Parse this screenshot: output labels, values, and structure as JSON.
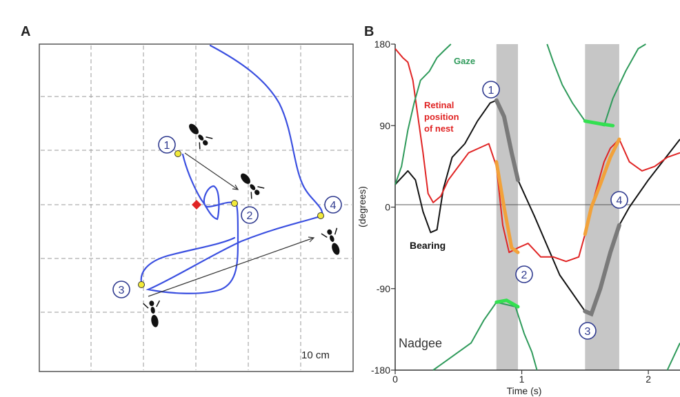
{
  "panel_a": {
    "label": "A",
    "scale_text": "10 cm",
    "markers": [
      "1",
      "2",
      "3",
      "4"
    ]
  },
  "panel_b": {
    "label": "B",
    "y_axis_label": "(degrees)",
    "x_axis_label": "Time (s)",
    "y_ticks": [
      "180",
      "90",
      "0",
      "-90",
      "-180"
    ],
    "x_ticks": [
      "0",
      "1",
      "2"
    ],
    "labels": {
      "gaze": "Gaze",
      "retinal_1": "Retinal",
      "retinal_2": "position",
      "retinal_3": "of nest",
      "bearing": "Bearing",
      "nadgee": "Nadgee"
    },
    "markers": [
      "1",
      "2",
      "3",
      "4"
    ]
  },
  "colors": {
    "gaze": "#2e9a5a",
    "retinal": "#e02424",
    "bearing": "#111111",
    "path": "#3a4fe0",
    "highlight_orange": "#f2a23a",
    "highlight_green": "#33e050",
    "marker": "#2f3a8f",
    "shade": "#c6c6c6"
  },
  "chart_data": {
    "type": "line",
    "xlabel": "Time (s)",
    "ylabel": "(degrees)",
    "xlim": [
      0,
      2.25
    ],
    "ylim": [
      -180,
      180
    ],
    "shaded_intervals": [
      [
        0.8,
        0.97
      ],
      [
        1.5,
        1.77
      ]
    ],
    "series": [
      {
        "name": "Bearing",
        "color": "#111111",
        "x": [
          0,
          0.1,
          0.16,
          0.22,
          0.28,
          0.33,
          0.38,
          0.45,
          0.55,
          0.65,
          0.75,
          0.8,
          0.86,
          0.97,
          1.1,
          1.3,
          1.5,
          1.55,
          1.62,
          1.7,
          1.77,
          1.85,
          2.0,
          2.25
        ],
        "y": [
          25,
          40,
          30,
          -5,
          -28,
          -25,
          20,
          55,
          70,
          95,
          115,
          118,
          100,
          30,
          -10,
          -75,
          -115,
          -118,
          -90,
          -50,
          -20,
          0,
          30,
          75
        ]
      },
      {
        "name": "Retinal position of nest",
        "color": "#e02424",
        "x": [
          0,
          0.06,
          0.1,
          0.14,
          0.18,
          0.22,
          0.26,
          0.3,
          0.36,
          0.42,
          0.5,
          0.58,
          0.66,
          0.74,
          0.8,
          0.85,
          0.9,
          0.97,
          1.05,
          1.15,
          1.25,
          1.35,
          1.45,
          1.5,
          1.55,
          1.6,
          1.65,
          1.7,
          1.77,
          1.85,
          1.95,
          2.05,
          2.15,
          2.25
        ],
        "y": [
          175,
          165,
          160,
          140,
          100,
          60,
          15,
          5,
          12,
          30,
          45,
          60,
          65,
          70,
          45,
          -20,
          -50,
          -45,
          -40,
          -55,
          -55,
          -60,
          -55,
          -30,
          0,
          25,
          50,
          65,
          75,
          50,
          40,
          45,
          55,
          60
        ]
      },
      {
        "name": "Gaze",
        "color": "#2e9a5a",
        "x": [
          0,
          0.04,
          0.1,
          0.15,
          0.22,
          0.3,
          0.37,
          0.42,
          0.5
        ],
        "y": [
          25,
          45,
          80,
          110,
          140,
          150,
          165,
          175,
          180
        ],
        "segments_note": "split"
      }
    ]
  }
}
